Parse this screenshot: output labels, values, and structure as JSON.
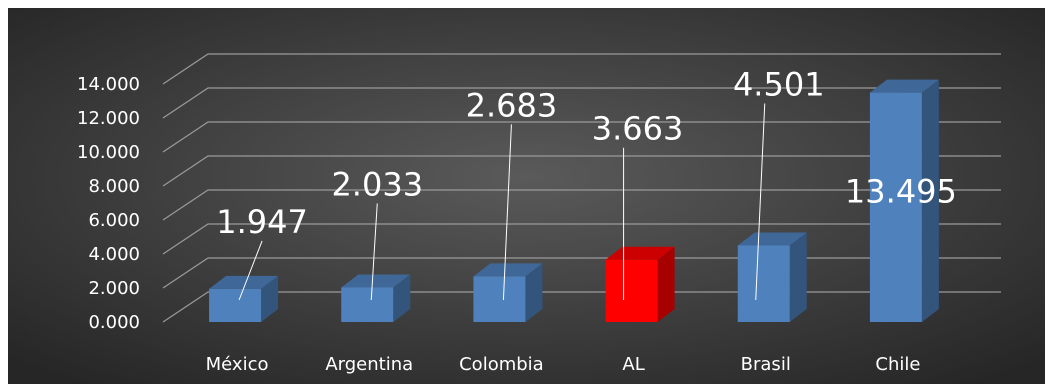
{
  "chart_data": {
    "type": "bar",
    "style": "3d-column",
    "categories": [
      "México",
      "Argentina",
      "Colombia",
      "AL",
      "Brasil",
      "Chile"
    ],
    "values": [
      1.947,
      2.033,
      2.683,
      3.663,
      4.501,
      13.495
    ],
    "data_labels": [
      "1.947",
      "2.033",
      "2.683",
      "3.663",
      "4.501",
      "13.495"
    ],
    "y_ticks": [
      0,
      2,
      4,
      6,
      8,
      10,
      12,
      14
    ],
    "y_tick_labels": [
      "0.000",
      "2.000",
      "4.000",
      "6.000",
      "8.000",
      "10.000",
      "12.000",
      "14.000"
    ],
    "ylim": [
      0,
      14
    ],
    "grid": true,
    "legend": "none",
    "colors": {
      "default_bar": "#4f81bd",
      "highlight_bar": "#ff0000",
      "background_center": "#5a5a5a",
      "background_edge": "#262626"
    },
    "highlight_index": 3
  }
}
